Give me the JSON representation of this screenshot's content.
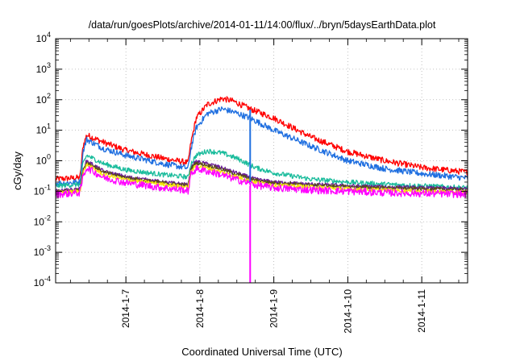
{
  "chart_data": {
    "type": "line",
    "title": "/data/run/goesPlots/archive/2014-01-11/14:00/flux/../bryn/5daysEarthData.plot",
    "xlabel": "Coordinated Universal Time (UTC)",
    "ylabel": "cGy/day",
    "y_scale": "log",
    "ylim": [
      0.0001,
      10000
    ],
    "xlim": [
      6.05,
      11.62
    ],
    "grid": true,
    "y_ticks": [
      {
        "value": 0.0001,
        "base": "10",
        "exp": "-4"
      },
      {
        "value": 0.001,
        "base": "10",
        "exp": "-3"
      },
      {
        "value": 0.01,
        "base": "10",
        "exp": "-2"
      },
      {
        "value": 0.1,
        "base": "10",
        "exp": "-1"
      },
      {
        "value": 1,
        "base": "10",
        "exp": "0"
      },
      {
        "value": 10,
        "base": "10",
        "exp": "1"
      },
      {
        "value": 100,
        "base": "10",
        "exp": "2"
      },
      {
        "value": 1000,
        "base": "10",
        "exp": "3"
      },
      {
        "value": 10000,
        "base": "10",
        "exp": "4"
      }
    ],
    "x_ticks": [
      {
        "value": 7,
        "label": "2014-1-7"
      },
      {
        "value": 8,
        "label": "2014-1-8"
      },
      {
        "value": 9,
        "label": "2014-1-9"
      },
      {
        "value": 10,
        "label": "2014-1-10"
      },
      {
        "value": 11,
        "label": "2014-1-11"
      }
    ],
    "series": [
      {
        "color": "#ff0000",
        "noise": 0.1,
        "points": [
          [
            6.05,
            0.25
          ],
          [
            6.38,
            0.28
          ],
          [
            6.42,
            3.0
          ],
          [
            6.47,
            7.0
          ],
          [
            6.7,
            4.0
          ],
          [
            7.0,
            2.2
          ],
          [
            7.5,
            1.2
          ],
          [
            7.8,
            0.9
          ],
          [
            7.84,
            0.85
          ],
          [
            7.88,
            4.0
          ],
          [
            7.95,
            25
          ],
          [
            8.1,
            70
          ],
          [
            8.3,
            110
          ],
          [
            8.45,
            90
          ],
          [
            8.68,
            50
          ],
          [
            9.0,
            25
          ],
          [
            9.5,
            6
          ],
          [
            10.0,
            2.0
          ],
          [
            10.5,
            1.0
          ],
          [
            11.0,
            0.6
          ],
          [
            11.62,
            0.42
          ]
        ]
      },
      {
        "color": "#1f6fe0",
        "noise": 0.1,
        "points": [
          [
            6.05,
            0.18
          ],
          [
            6.38,
            0.2
          ],
          [
            6.42,
            2.0
          ],
          [
            6.47,
            5.0
          ],
          [
            6.7,
            2.5
          ],
          [
            7.0,
            1.5
          ],
          [
            7.5,
            0.8
          ],
          [
            7.8,
            0.6
          ],
          [
            7.84,
            0.55
          ],
          [
            7.88,
            2.5
          ],
          [
            7.95,
            12
          ],
          [
            8.1,
            35
          ],
          [
            8.3,
            50
          ],
          [
            8.45,
            40
          ],
          [
            8.68,
            25
          ],
          [
            9.0,
            10
          ],
          [
            9.5,
            3
          ],
          [
            10.0,
            1.0
          ],
          [
            10.5,
            0.55
          ],
          [
            11.0,
            0.38
          ],
          [
            11.62,
            0.27
          ]
        ]
      },
      {
        "color": "#1abc9c",
        "noise": 0.08,
        "points": [
          [
            6.05,
            0.15
          ],
          [
            6.38,
            0.17
          ],
          [
            6.42,
            0.8
          ],
          [
            6.47,
            1.5
          ],
          [
            6.7,
            0.8
          ],
          [
            7.0,
            0.5
          ],
          [
            7.5,
            0.35
          ],
          [
            7.8,
            0.3
          ],
          [
            7.84,
            0.28
          ],
          [
            7.88,
            0.8
          ],
          [
            7.95,
            1.5
          ],
          [
            8.1,
            2.1
          ],
          [
            8.3,
            1.8
          ],
          [
            8.5,
            1.2
          ],
          [
            8.75,
            0.6
          ],
          [
            9.0,
            0.4
          ],
          [
            9.5,
            0.25
          ],
          [
            10.0,
            0.2
          ],
          [
            10.5,
            0.17
          ],
          [
            11.0,
            0.15
          ],
          [
            11.62,
            0.13
          ]
        ]
      },
      {
        "color": "#6a1b9a",
        "noise": 0.06,
        "points": [
          [
            6.05,
            0.1
          ],
          [
            6.38,
            0.12
          ],
          [
            6.42,
            0.5
          ],
          [
            6.47,
            1.0
          ],
          [
            6.7,
            0.45
          ],
          [
            7.0,
            0.3
          ],
          [
            7.5,
            0.2
          ],
          [
            7.8,
            0.17
          ],
          [
            7.84,
            0.16
          ],
          [
            7.88,
            0.6
          ],
          [
            7.95,
            0.95
          ],
          [
            8.2,
            0.7
          ],
          [
            8.5,
            0.4
          ],
          [
            8.75,
            0.25
          ],
          [
            9.0,
            0.2
          ],
          [
            9.5,
            0.17
          ],
          [
            10.0,
            0.15
          ],
          [
            10.5,
            0.14
          ],
          [
            11.0,
            0.13
          ],
          [
            11.62,
            0.12
          ]
        ]
      },
      {
        "color": "#5c4a1e",
        "noise": 0.06,
        "points": [
          [
            6.05,
            0.1
          ],
          [
            6.38,
            0.11
          ],
          [
            6.42,
            0.45
          ],
          [
            6.47,
            0.9
          ],
          [
            6.7,
            0.42
          ],
          [
            7.0,
            0.28
          ],
          [
            7.5,
            0.19
          ],
          [
            7.8,
            0.16
          ],
          [
            7.84,
            0.15
          ],
          [
            7.88,
            0.55
          ],
          [
            7.95,
            0.85
          ],
          [
            8.2,
            0.62
          ],
          [
            8.5,
            0.36
          ],
          [
            8.75,
            0.23
          ],
          [
            9.0,
            0.19
          ],
          [
            9.5,
            0.16
          ],
          [
            10.0,
            0.14
          ],
          [
            10.5,
            0.13
          ],
          [
            11.0,
            0.12
          ],
          [
            11.62,
            0.11
          ]
        ]
      },
      {
        "color": "#f5e50a",
        "noise": 0.06,
        "points": [
          [
            6.05,
            0.09
          ],
          [
            6.38,
            0.1
          ],
          [
            6.42,
            0.4
          ],
          [
            6.47,
            0.75
          ],
          [
            6.7,
            0.35
          ],
          [
            7.0,
            0.24
          ],
          [
            7.5,
            0.17
          ],
          [
            7.8,
            0.14
          ],
          [
            7.84,
            0.13
          ],
          [
            7.88,
            0.45
          ],
          [
            7.95,
            0.7
          ],
          [
            8.2,
            0.5
          ],
          [
            8.5,
            0.3
          ],
          [
            8.75,
            0.2
          ],
          [
            9.0,
            0.16
          ],
          [
            9.5,
            0.14
          ],
          [
            10.0,
            0.12
          ],
          [
            10.5,
            0.11
          ],
          [
            11.0,
            0.1
          ],
          [
            11.62,
            0.095
          ]
        ]
      },
      {
        "color": "#ff00ff",
        "noise": 0.12,
        "points": [
          [
            6.05,
            0.08
          ],
          [
            6.38,
            0.09
          ],
          [
            6.42,
            0.3
          ],
          [
            6.47,
            0.6
          ],
          [
            6.7,
            0.28
          ],
          [
            7.0,
            0.19
          ],
          [
            7.5,
            0.13
          ],
          [
            7.8,
            0.11
          ],
          [
            7.84,
            0.1
          ],
          [
            7.88,
            0.35
          ],
          [
            7.95,
            0.55
          ],
          [
            8.2,
            0.4
          ],
          [
            8.5,
            0.24
          ],
          [
            8.75,
            0.16
          ],
          [
            9.0,
            0.13
          ],
          [
            9.5,
            0.11
          ],
          [
            10.0,
            0.1
          ],
          [
            10.5,
            0.09
          ],
          [
            11.0,
            0.085
          ],
          [
            11.62,
            0.08
          ]
        ]
      }
    ],
    "gaps": [
      {
        "color": "#1f6fe0",
        "x": 8.68,
        "y_from": 0.2,
        "y_to": 48
      },
      {
        "color": "#ff00ff",
        "x": 8.68,
        "y_from": 0.0001,
        "y_to": 0.15
      }
    ]
  }
}
